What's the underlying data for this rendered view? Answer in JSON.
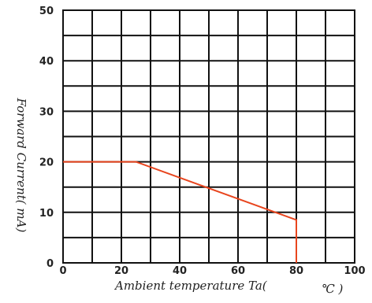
{
  "chart_data": {
    "type": "line",
    "title": "",
    "xlabel": "Ambient temperature Ta(",
    "xlabel_unit": "℃ )",
    "ylabel": "Forward Current(  mA)",
    "xlim": [
      0,
      100
    ],
    "ylim": [
      0,
      50
    ],
    "x_ticks": [
      0,
      20,
      40,
      60,
      80,
      100
    ],
    "x_tick_labels": [
      "0",
      "20",
      "40",
      "60",
      "80",
      "100"
    ],
    "y_ticks": [
      0,
      10,
      20,
      30,
      40,
      50
    ],
    "y_tick_labels": [
      "0",
      "10",
      "20",
      "30",
      "40",
      "50"
    ],
    "x_grid_step": 10,
    "y_grid_step": 5,
    "grid": true,
    "series": [
      {
        "color": "#e8451e",
        "x": [
          0,
          25,
          80,
          80
        ],
        "y": [
          20,
          20,
          8.5,
          0
        ]
      }
    ]
  }
}
